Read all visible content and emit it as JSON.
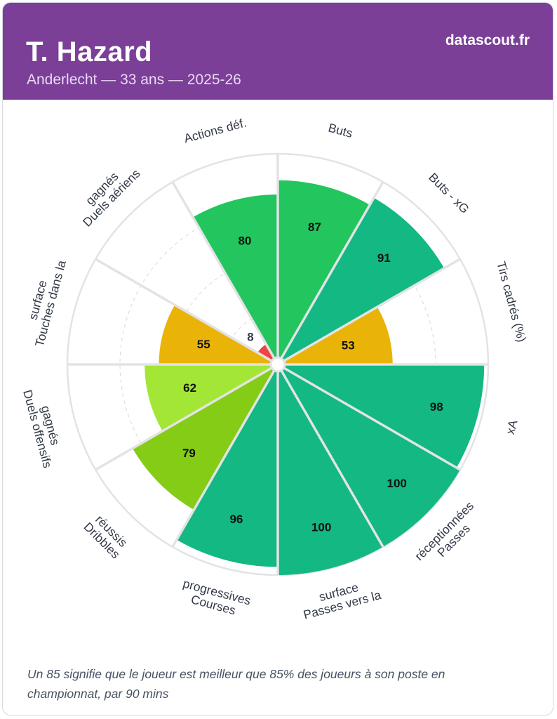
{
  "header": {
    "player_name": "T. Hazard",
    "subtitle": "Anderlecht — 33 ans — 2025-26",
    "brand": "datascout.fr"
  },
  "footnote": "Un 85 signifie que le joueur est meilleur que 85% des joueurs à son poste en championnat, par 90 mins",
  "colors": {
    "header_bg": "#7b3f98",
    "elite": "#13b883",
    "very_good": "#22c55e",
    "good": "#84cc16",
    "above_avg": "#a3e635",
    "average": "#eab308",
    "poor": "#ef4444",
    "divider": "#e3e3e6",
    "grid": "#d8d8dc",
    "label": "#333a48"
  },
  "chart_data": {
    "type": "polar_area",
    "title": "T. Hazard",
    "scale": [
      0,
      100
    ],
    "categories": [
      "Buts",
      "Buts - xG",
      "Tirs cadrés (%)",
      "xA",
      "Passes réceptionnées",
      "Passes vers la surface",
      "Courses progressives",
      "Dribbles réussis",
      "Duels offensifs gagnés",
      "Touches dans la surface",
      "Duels aériens gagnés",
      "Actions déf."
    ],
    "label_lines": [
      [
        "Buts"
      ],
      [
        "Buts - xG"
      ],
      [
        "Tirs cadrés (%)"
      ],
      [
        "xA"
      ],
      [
        "Passes",
        "réceptionnées"
      ],
      [
        "Passes vers la",
        "surface"
      ],
      [
        "Courses",
        "progressives"
      ],
      [
        "Dribbles",
        "réussis"
      ],
      [
        "Duels offensifs",
        "gagnés"
      ],
      [
        "Touches dans la",
        "surface"
      ],
      [
        "Duels aériens",
        "gagnés"
      ],
      [
        "Actions déf."
      ]
    ],
    "values": [
      87,
      91,
      53,
      98,
      100,
      100,
      96,
      79,
      62,
      55,
      8,
      80
    ]
  }
}
